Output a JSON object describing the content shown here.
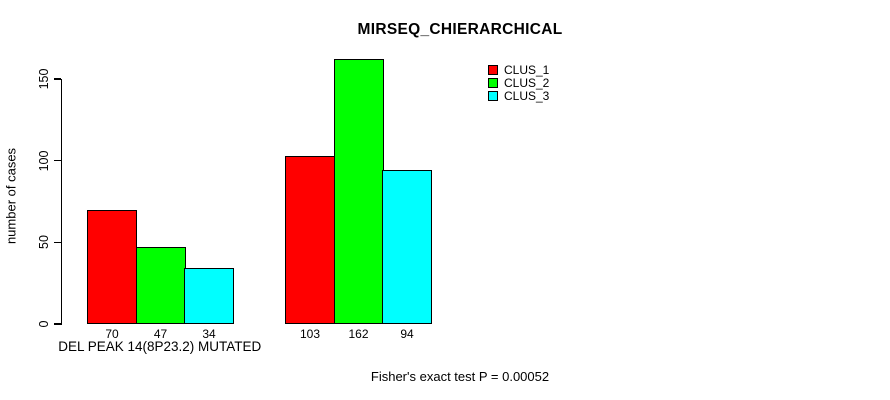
{
  "chart_data": {
    "type": "bar",
    "title": "MIRSEQ_CHIERARCHICAL",
    "ylabel": "number of cases",
    "xlabel": "",
    "yticks": [
      0,
      50,
      100,
      150
    ],
    "ylim": [
      0,
      162
    ],
    "grid": false,
    "legend_position": "top-right",
    "bar_value_labels_shown": true,
    "categories": [
      "DEL PEAK 14(8P23.2) MUTATED",
      ""
    ],
    "series": [
      {
        "name": "CLUS_1",
        "color": "#FF0000",
        "values": [
          70,
          103
        ]
      },
      {
        "name": "CLUS_2",
        "color": "#00FF00",
        "values": [
          47,
          162
        ]
      },
      {
        "name": "CLUS_3",
        "color": "#00FFFF",
        "values": [
          34,
          94
        ]
      }
    ],
    "annotation": "Fisher's exact test P = 0.00052"
  }
}
